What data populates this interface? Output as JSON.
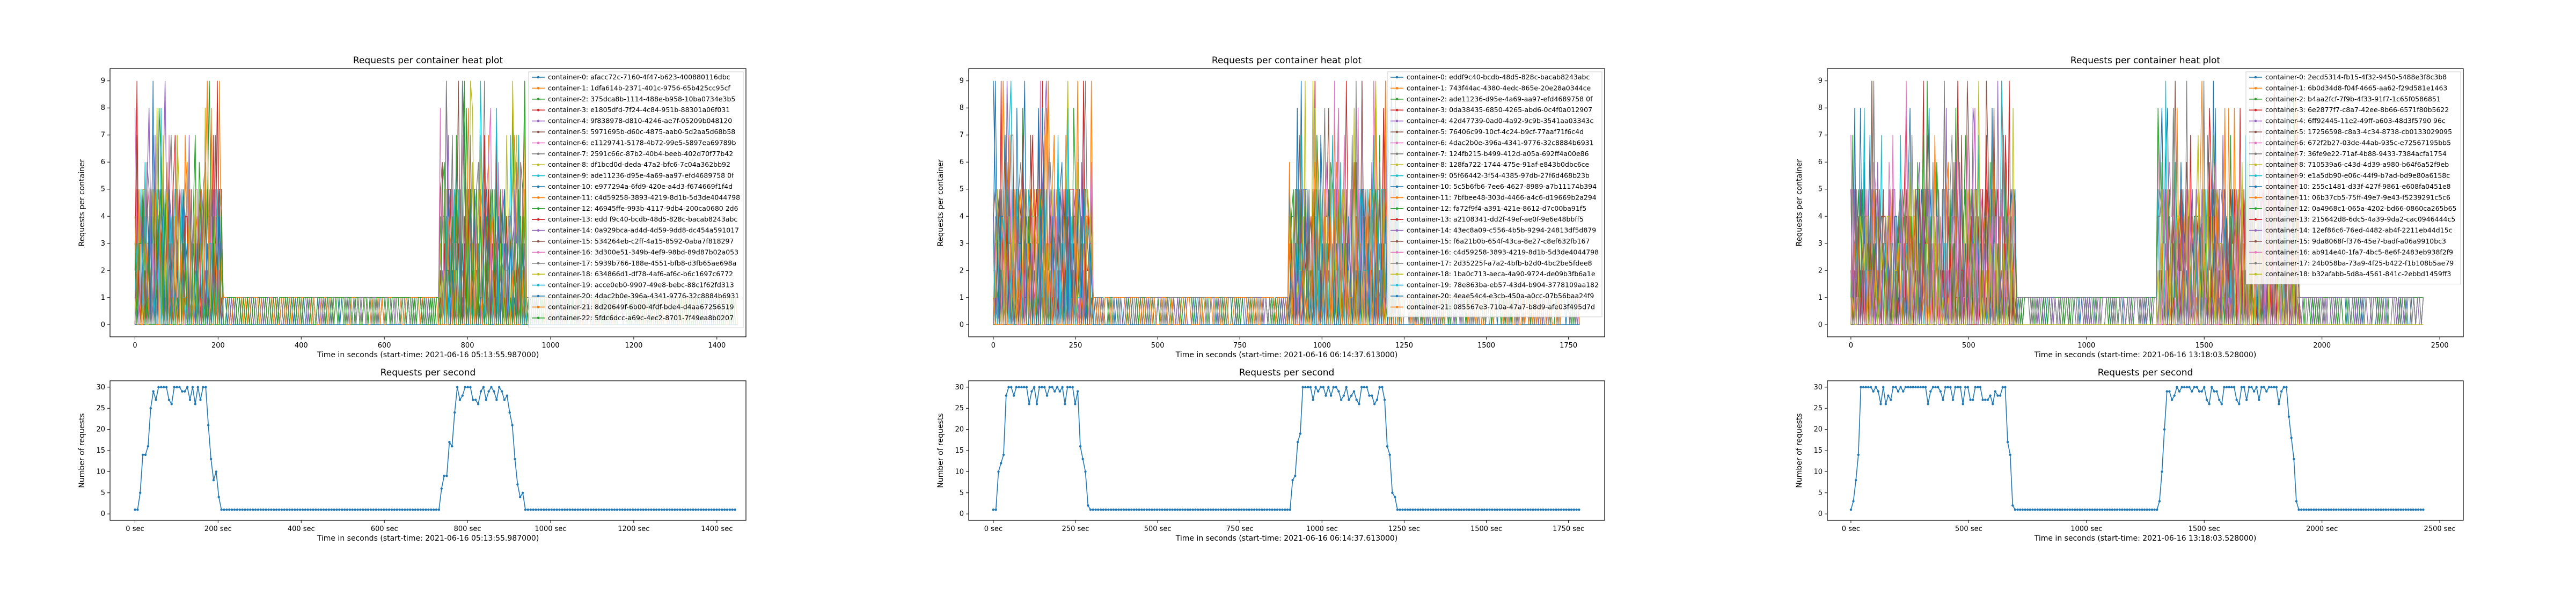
{
  "chart_data": [
    {
      "type": "line",
      "title": "Requests per container heat plot",
      "xlabel": "Time in seconds (start-time: 2021-06-16 05:13:55.987000)",
      "ylabel": "Requests per container",
      "xlim": [
        -60,
        1470
      ],
      "ylim": [
        -0.45,
        9.45
      ],
      "xticks": [
        0,
        200,
        400,
        600,
        800,
        1000,
        1200,
        1400
      ],
      "yticks": [
        0,
        1,
        2,
        3,
        4,
        5,
        6,
        7,
        8,
        9
      ],
      "legend": "top-right",
      "containers": [
        "container-0: afacc72c-7160-4f47-b623-400880116dbc",
        "container-1: 1dfa614b-2371-401c-9756-65b425cc95cf",
        "container-2: 375dca8b-1114-488e-b958-10ba0734e3b5",
        "container-3: e1805dfd-7f24-4c84-951b-88301a06f031",
        "container-4: 9f838978-d810-4246-ae7f-05209b048120",
        "container-5: 5971695b-d60c-4875-aab0-5d2aa5d68b58",
        "container-6: e1129741-5178-4b72-99e5-5897ea69789b",
        "container-7: 2591c66c-87b2-40b4-beeb-402d70f77b42",
        "container-8: df1bcd0d-deda-47a2-bfc6-7c04a362bb92",
        "container-9: ade11236-d95e-4a69-aa97-efd4689758 0f",
        "container-10: e977294a-6fd9-420e-a4d3-f674669f1f4d",
        "container-11: c4d59258-3893-4219-8d1b-5d3de4044798",
        "container-12: 46945ffe-993b-4117-9db4-200ca0680 2d6",
        "container-13: edd f9c40-bcdb-48d5-828c-bacab8243abc",
        "container-14: 0a929bca-ad4d-4d59-9dd8-dc454a591017",
        "container-15: 534264eb-c2ff-4a15-8592-0aba7f818297",
        "container-16: 3d300e51-349b-4ef9-98bd-89d87b02a053",
        "container-17: 5939b766-188e-4551-bfb8-d3fb65ae698a",
        "container-18: 634866d1-df78-4af6-af6c-b6c1697c6772",
        "container-19: acce0eb0-9907-49e8-bebc-88c1f62fd313",
        "container-20: 4dac2b0e-396a-4341-9776-32c8884b6931",
        "container-21: 8d20649f-6b00-4fdf-bde4-d4aa67256519",
        "container-22: 5fdc6dcc-a69c-4ec2-8701-7f49ea8b0207"
      ],
      "total_duration": 1450,
      "busy_windows": [
        [
          0,
          210
        ],
        [
          730,
          940
        ]
      ]
    },
    {
      "type": "line",
      "title": "Requests per second",
      "xlabel": "Time in seconds (start-time: 2021-06-16 05:13:55.987000)",
      "ylabel": "Number of requests",
      "xlim": [
        -60,
        1470
      ],
      "ylim": [
        -1.5,
        31.5
      ],
      "xtick_labels": [
        "0 sec",
        "200 sec",
        "400 sec",
        "600 sec",
        "800 sec",
        "1000 sec",
        "1200 sec",
        "1400 sec"
      ],
      "xticks": [
        0,
        200,
        400,
        600,
        800,
        1000,
        1200,
        1400
      ],
      "yticks": [
        0,
        5,
        10,
        15,
        20,
        25,
        30
      ],
      "total_duration": 1450,
      "busy_windows": [
        [
          0,
          210
        ],
        [
          730,
          940
        ]
      ]
    },
    {
      "type": "line",
      "title": "Requests per container heat plot",
      "xlabel": "Time in seconds (start-time: 2021-06-16 06:14:37.613000)",
      "ylabel": "Requests per container",
      "xlim": [
        -75,
        1860
      ],
      "ylim": [
        -0.45,
        9.45
      ],
      "xticks": [
        0,
        250,
        500,
        750,
        1000,
        1250,
        1500,
        1750
      ],
      "yticks": [
        0,
        1,
        2,
        3,
        4,
        5,
        6,
        7,
        8,
        9
      ],
      "legend": "top-right",
      "containers": [
        "container-0: eddf9c40-bcdb-48d5-828c-bacab8243abc",
        "container-1: 743f44ac-4380-4edc-865e-20e28a0344ce",
        "container-2: ade11236-d95e-4a69-aa97-efd4689758 0f",
        "container-3: 0da38435-6850-4265-abd6-0c4f0a012907",
        "container-4: 42d47739-0ad0-4a92-9c9b-3541aa03343c",
        "container-5: 76406c99-10cf-4c24-b9cf-77aaf71f6c4d",
        "container-6: 4dac2b0e-396a-4341-9776-32c8884b6931",
        "container-7: 124fb215-b499-412d-a05a-692ff4a00e86",
        "container-8: 128fa722-1744-475e-91af-e843b0dbc6ce",
        "container-9: 05f66442-3f54-4385-97db-27f6d468b23b",
        "container-10: 5c5b6fb6-7ee6-4627-8989-a7b11174b394",
        "container-11: 7bfbee48-303d-4466-a4c6-d19669b2a294",
        "container-12: fa72f9f4-a391-421e-8612-d7c00ba91f5",
        "container-13: a2108341-dd2f-49ef-ae0f-9e6e48bbff5",
        "container-14: 43ec8a09-c556-4b5b-9294-24813df5d879",
        "container-15: f6a21b0b-654f-43ca-8e27-c8ef632fb167",
        "container-16: c4d59258-3893-4219-8d1b-5d3de4044798",
        "container-17: 2d35225f-a7a2-4bfb-b2d0-4bc2be5fdee8",
        "container-18: 1ba0c713-aeca-4a90-9724-de09b3fb6a1e",
        "container-19: 78e863ba-eb57-43d4-b904-3778109aa182",
        "container-20: 4eae54c4-e3cb-450a-a0cc-07b56baa24f9",
        "container-21: 085567e3-710a-47a7-b8d9-afe03f495d7d"
      ],
      "total_duration": 1790,
      "busy_windows": [
        [
          0,
          300
        ],
        [
          900,
          1230
        ]
      ]
    },
    {
      "type": "line",
      "title": "Requests per second",
      "xlabel": "Time in seconds (start-time: 2021-06-16 06:14:37.613000)",
      "ylabel": "Number of requests",
      "xlim": [
        -75,
        1860
      ],
      "ylim": [
        -1.5,
        31.5
      ],
      "xtick_labels": [
        "0 sec",
        "250 sec",
        "500 sec",
        "750 sec",
        "1000 sec",
        "1250 sec",
        "1500 sec",
        "1750 sec"
      ],
      "xticks": [
        0,
        250,
        500,
        750,
        1000,
        1250,
        1500,
        1750
      ],
      "yticks": [
        0,
        5,
        10,
        15,
        20,
        25,
        30
      ],
      "total_duration": 1790,
      "busy_windows": [
        [
          0,
          300
        ],
        [
          900,
          1230
        ]
      ]
    },
    {
      "type": "line",
      "title": "Requests per container heat plot",
      "xlabel": "Time in seconds (start-time: 2021-06-16 13:18:03.528000)",
      "ylabel": "Requests per container",
      "xlim": [
        -100,
        2600
      ],
      "ylim": [
        -0.45,
        9.45
      ],
      "xticks": [
        0,
        500,
        1000,
        1500,
        2000,
        2500
      ],
      "yticks": [
        0,
        1,
        2,
        3,
        4,
        5,
        6,
        7,
        8,
        9
      ],
      "legend": "top-right",
      "containers": [
        "container-0: 2ecd5314-fb15-4f32-9450-5488e3f8c3b8",
        "container-1: 6b0d34d8-f04f-4665-aa62-f29d581e1463",
        "container-2: b4aa2fcf-7f9b-4f33-91f7-1c65f0586851",
        "container-3: 6e2877f7-c8a7-42ee-8b66-6571f80b5622",
        "container-4: 6ff92445-11e2-49ff-a603-48d3f5790 96c",
        "container-5: 17256598-c8a3-4c34-8738-cb0133029095",
        "container-6: 672f2b27-03de-44ab-935c-e72567195bb5",
        "container-7: 36fe9e22-71af-4b88-9433-7384acfa1754",
        "container-8: 710539a6-c43d-4d39-a980-b64f6a52f9eb",
        "container-9: e1a5db90-e06c-44f9-b7ad-bd9e80a6158c",
        "container-10: 255c1481-d33f-427f-9861-e608fa0451e8",
        "container-11: 06b37cb5-75ff-49e7-9e43-f5239291c5c6",
        "container-12: 0a4968c1-065a-4202-bd66-0860ca265b65",
        "container-13: 215642d8-6dc5-4a39-9da2-cac0946444c5",
        "container-14: 12ef86c6-76ed-4482-ab4f-2211eb44d15c",
        "container-15: 9da8068f-f376-45e7-badf-a06a9910bc3",
        "container-16: ab914e40-1fa7-4bc5-8e6f-2483eb938f2f9",
        "container-17: 24b058ba-73a9-4f25-b422-f1b108b5ae79",
        "container-18: b32afabb-5d8a-4561-841c-2ebbd1459ff3"
      ],
      "total_duration": 2430,
      "busy_windows": [
        [
          0,
          700
        ],
        [
          1300,
          1900
        ]
      ]
    },
    {
      "type": "line",
      "title": "Requests per second",
      "xlabel": "Time in seconds (start-time: 2021-06-16 13:18:03.528000)",
      "ylabel": "Number of requests",
      "xlim": [
        -100,
        2600
      ],
      "ylim": [
        -1.5,
        31.5
      ],
      "xtick_labels": [
        "0 sec",
        "500 sec",
        "1000 sec",
        "1500 sec",
        "2000 sec",
        "2500 sec"
      ],
      "xticks": [
        0,
        500,
        1000,
        1500,
        2000,
        2500
      ],
      "yticks": [
        0,
        5,
        10,
        15,
        20,
        25,
        30
      ],
      "total_duration": 2430,
      "busy_windows": [
        [
          0,
          700
        ],
        [
          1300,
          1900
        ]
      ]
    }
  ],
  "series_colors": [
    "#1f77b4",
    "#ff7f0e",
    "#2ca02c",
    "#d62728",
    "#9467bd",
    "#8c564b",
    "#e377c2",
    "#7f7f7f",
    "#bcbd22",
    "#17becf"
  ]
}
